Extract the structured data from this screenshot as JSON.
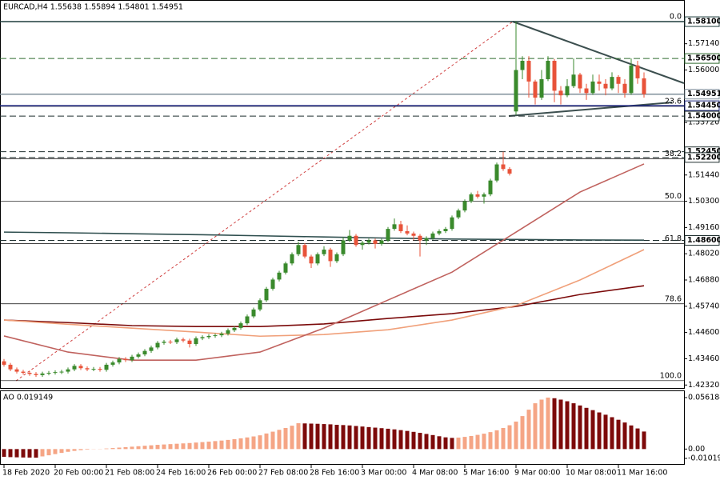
{
  "chart_data": {
    "type": "candlestick",
    "title": "EURCAD,H4 1.55638 1.55894 1.54801 1.54951",
    "up_color": "#3a8a2c",
    "down_color": "#e8533a",
    "candles": [
      [
        1.4335,
        1.4345,
        1.4312,
        1.432
      ],
      [
        1.432,
        1.4328,
        1.4292,
        1.43
      ],
      [
        1.43,
        1.4308,
        1.4282,
        1.429
      ],
      [
        1.429,
        1.4298,
        1.4277,
        1.4285
      ],
      [
        1.4285,
        1.4293,
        1.4272,
        1.428
      ],
      [
        1.428,
        1.4288,
        1.4267,
        1.4275
      ],
      [
        1.4275,
        1.429,
        1.4267,
        1.4282
      ],
      [
        1.4282,
        1.4293,
        1.4274,
        1.4285
      ],
      [
        1.4285,
        1.4296,
        1.4277,
        1.4288
      ],
      [
        1.4288,
        1.4298,
        1.428,
        1.429
      ],
      [
        1.429,
        1.4308,
        1.4282,
        1.43
      ],
      [
        1.43,
        1.4323,
        1.4292,
        1.4315
      ],
      [
        1.4315,
        1.4323,
        1.4297,
        1.4305
      ],
      [
        1.4305,
        1.4313,
        1.4292,
        1.43
      ],
      [
        1.43,
        1.431,
        1.4292,
        1.4302
      ],
      [
        1.4302,
        1.431,
        1.429,
        1.4298
      ],
      [
        1.4298,
        1.4328,
        1.429,
        1.432
      ],
      [
        1.432,
        1.4338,
        1.4312,
        1.433
      ],
      [
        1.433,
        1.4353,
        1.4322,
        1.4345
      ],
      [
        1.4345,
        1.4353,
        1.4332,
        1.434
      ],
      [
        1.434,
        1.4363,
        1.4332,
        1.4355
      ],
      [
        1.4355,
        1.4373,
        1.4347,
        1.4365
      ],
      [
        1.4365,
        1.4388,
        1.4357,
        1.438
      ],
      [
        1.438,
        1.4403,
        1.4372,
        1.4395
      ],
      [
        1.4395,
        1.4423,
        1.4387,
        1.4415
      ],
      [
        1.4415,
        1.4428,
        1.4407,
        1.442
      ],
      [
        1.442,
        1.4428,
        1.441,
        1.4418
      ],
      [
        1.4418,
        1.4438,
        1.441,
        1.443
      ],
      [
        1.443,
        1.4438,
        1.4417,
        1.4425
      ],
      [
        1.4425,
        1.4433,
        1.4395,
        1.441
      ],
      [
        1.441,
        1.4443,
        1.4402,
        1.4435
      ],
      [
        1.4435,
        1.4448,
        1.4427,
        1.444
      ],
      [
        1.444,
        1.4453,
        1.4432,
        1.4445
      ],
      [
        1.4445,
        1.4456,
        1.4437,
        1.4448
      ],
      [
        1.4448,
        1.4463,
        1.444,
        1.4455
      ],
      [
        1.4455,
        1.4478,
        1.4447,
        1.447
      ],
      [
        1.447,
        1.4488,
        1.4462,
        1.448
      ],
      [
        1.448,
        1.4508,
        1.4472,
        1.45
      ],
      [
        1.45,
        1.4538,
        1.4492,
        1.453
      ],
      [
        1.453,
        1.4568,
        1.4522,
        1.456
      ],
      [
        1.456,
        1.4608,
        1.4552,
        1.46
      ],
      [
        1.46,
        1.4658,
        1.4592,
        1.465
      ],
      [
        1.465,
        1.4698,
        1.4642,
        1.469
      ],
      [
        1.469,
        1.4728,
        1.4682,
        1.472
      ],
      [
        1.472,
        1.4768,
        1.4712,
        1.476
      ],
      [
        1.476,
        1.4808,
        1.4752,
        1.48
      ],
      [
        1.48,
        1.4855,
        1.4792,
        1.484
      ],
      [
        1.484,
        1.4848,
        1.4782,
        1.479
      ],
      [
        1.479,
        1.4798,
        1.474,
        1.476
      ],
      [
        1.476,
        1.4808,
        1.4752,
        1.48
      ],
      [
        1.48,
        1.4835,
        1.4792,
        1.482
      ],
      [
        1.482,
        1.4828,
        1.4745,
        1.477
      ],
      [
        1.477,
        1.4808,
        1.4762,
        1.48
      ],
      [
        1.48,
        1.4875,
        1.4792,
        1.486
      ],
      [
        1.486,
        1.4905,
        1.4852,
        1.488
      ],
      [
        1.488,
        1.4888,
        1.4832,
        1.484
      ],
      [
        1.484,
        1.4858,
        1.482,
        1.485
      ],
      [
        1.485,
        1.4868,
        1.4842,
        1.486
      ],
      [
        1.486,
        1.4868,
        1.4825,
        1.4845
      ],
      [
        1.4845,
        1.4868,
        1.4837,
        1.486
      ],
      [
        1.486,
        1.4918,
        1.4852,
        1.491
      ],
      [
        1.491,
        1.4955,
        1.4902,
        1.493
      ],
      [
        1.493,
        1.4945,
        1.4892,
        1.49
      ],
      [
        1.49,
        1.4925,
        1.4882,
        1.489
      ],
      [
        1.489,
        1.4898,
        1.486,
        1.488
      ],
      [
        1.488,
        1.4888,
        1.479,
        1.486
      ],
      [
        1.486,
        1.4878,
        1.484,
        1.487
      ],
      [
        1.487,
        1.4898,
        1.4862,
        1.489
      ],
      [
        1.489,
        1.4908,
        1.4882,
        1.49
      ],
      [
        1.49,
        1.4918,
        1.4892,
        1.491
      ],
      [
        1.491,
        1.4968,
        1.4902,
        1.496
      ],
      [
        1.496,
        1.4998,
        1.4952,
        1.499
      ],
      [
        1.499,
        1.5038,
        1.4982,
        1.503
      ],
      [
        1.503,
        1.5068,
        1.5022,
        1.506
      ],
      [
        1.506,
        1.5075,
        1.5042,
        1.505
      ],
      [
        1.505,
        1.5068,
        1.502,
        1.506
      ],
      [
        1.506,
        1.5128,
        1.5052,
        1.512
      ],
      [
        1.512,
        1.5198,
        1.5112,
        1.519
      ],
      [
        1.519,
        1.5245,
        1.5162,
        1.517
      ],
      [
        1.517,
        1.5178,
        1.5142,
        1.515
      ],
      [
        1.542,
        1.581,
        1.5405,
        1.56
      ],
      [
        1.56,
        1.566,
        1.556,
        1.564
      ],
      [
        1.564,
        1.566,
        1.548,
        1.555
      ],
      [
        1.555,
        1.5558,
        1.545,
        1.548
      ],
      [
        1.548,
        1.56,
        1.547,
        1.556
      ],
      [
        1.556,
        1.566,
        1.5552,
        1.564
      ],
      [
        1.564,
        1.5648,
        1.546,
        1.551
      ],
      [
        1.551,
        1.553,
        1.545,
        1.549
      ],
      [
        1.549,
        1.556,
        1.5482,
        1.553
      ],
      [
        1.553,
        1.565,
        1.5522,
        1.558
      ],
      [
        1.558,
        1.5588,
        1.55,
        1.552
      ],
      [
        1.552,
        1.554,
        1.547,
        1.55
      ],
      [
        1.55,
        1.558,
        1.5492,
        1.555
      ],
      [
        1.555,
        1.558,
        1.551,
        1.554
      ],
      [
        1.554,
        1.556,
        1.549,
        1.552
      ],
      [
        1.552,
        1.559,
        1.5512,
        1.557
      ],
      [
        1.557,
        1.5578,
        1.55,
        1.554
      ],
      [
        1.554,
        1.556,
        1.548,
        1.55
      ],
      [
        1.55,
        1.565,
        1.5492,
        1.562
      ],
      [
        1.562,
        1.564,
        1.554,
        1.55638
      ],
      [
        1.55638,
        1.55894,
        1.54801,
        1.54951
      ]
    ],
    "xticks": [
      {
        "value": 0,
        "label": "18 Feb 2020"
      },
      {
        "value": 8,
        "label": "20 Feb 00:00"
      },
      {
        "value": 16,
        "label": "21 Feb 08:00"
      },
      {
        "value": 24,
        "label": "24 Feb 16:00"
      },
      {
        "value": 32,
        "label": "26 Feb 00:00"
      },
      {
        "value": 40,
        "label": "27 Feb 08:00"
      },
      {
        "value": 48,
        "label": "28 Feb 16:00"
      },
      {
        "value": 56,
        "label": "3 Mar 00:00"
      },
      {
        "value": 64,
        "label": "4 Mar 08:00"
      },
      {
        "value": 72,
        "label": "5 Mar 16:00"
      },
      {
        "value": 80,
        "label": "9 Mar 00:00"
      },
      {
        "value": 88,
        "label": "10 Mar 08:00"
      },
      {
        "value": 96,
        "label": "11 Mar 16:00"
      }
    ],
    "ylim": [
      1.4219,
      1.5904
    ],
    "yticks": [
      {
        "value": 1.5714,
        "label": "1.57140"
      },
      {
        "value": 1.56,
        "label": "1.56000"
      },
      {
        "value": 1.5372,
        "label": "1.53720"
      },
      {
        "value": 1.5144,
        "label": "1.51440"
      },
      {
        "value": 1.503,
        "label": "1.50300"
      },
      {
        "value": 1.4916,
        "label": "1.49160"
      },
      {
        "value": 1.4802,
        "label": "1.48020"
      },
      {
        "value": 1.4688,
        "label": "1.46880"
      },
      {
        "value": 1.4574,
        "label": "1.45740"
      },
      {
        "value": 1.446,
        "label": "1.44600"
      },
      {
        "value": 1.4346,
        "label": "1.43460"
      },
      {
        "value": 1.4232,
        "label": "1.42320"
      }
    ],
    "levels": [
      {
        "value": 1.581,
        "label": "1.58100",
        "color": "#1f3d3d",
        "dashed": false
      },
      {
        "value": 1.565,
        "label": "1.56500",
        "color": "#2e6b2e",
        "dashed": true
      },
      {
        "value": 1.54951,
        "label": "1.54951",
        "color": "#7f8f9a",
        "dashed": false
      },
      {
        "value": 1.5445,
        "label": "1.54450",
        "color": "#1a237e",
        "dashed": false
      },
      {
        "value": 1.54,
        "label": "1.54000",
        "color": "#1f2f2f",
        "dashed": true
      },
      {
        "value": 1.5245,
        "label": "1.52450",
        "color": "#1f2f2f",
        "dashed": true
      },
      {
        "value": 1.522,
        "label": "1.52200",
        "color": "#1f2f2f",
        "dashed": true
      },
      {
        "value": 1.486,
        "label": "1.48600",
        "color": "#1f2f2f",
        "dashed": true
      }
    ],
    "fib": {
      "high": 1.581,
      "low": 1.4251,
      "color": "#000000",
      "levels": [
        {
          "value": 0,
          "label": "0.0"
        },
        23.6,
        38.2,
        {
          "value": 50,
          "label": "50.0"
        },
        61.8,
        78.6,
        {
          "value": 100,
          "label": "100.0"
        }
      ]
    },
    "moving_averages": [
      {
        "color": "#2f4f4f",
        "values": [
          1.4896,
          1.4893,
          1.4889,
          1.4885,
          1.488,
          1.4875,
          1.487,
          1.4866,
          1.4864,
          1.4862,
          1.4861
        ]
      },
      {
        "color": "#7b0a0a",
        "values": [
          1.4514,
          1.4503,
          1.449,
          1.4486,
          1.4486,
          1.4497,
          1.4521,
          1.4542,
          1.4573,
          1.4625,
          1.4663
        ]
      },
      {
        "color": "#f0a07a",
        "values": [
          1.4514,
          1.4496,
          1.4479,
          1.4462,
          1.4444,
          1.4451,
          1.4472,
          1.4514,
          1.4577,
          1.4688,
          1.482
        ]
      },
      {
        "color": "#c0625e",
        "values": [
          1.4445,
          1.4375,
          1.434,
          1.434,
          1.4375,
          1.4479,
          1.4601,
          1.4722,
          1.4896,
          1.507,
          1.5192
        ]
      }
    ],
    "ao": {
      "type": "bar",
      "label": "AO 0.019149",
      "up_color": "#f5a585",
      "down_color": "#7d0a0a",
      "ylim": [
        -0.010193,
        0.056184
      ],
      "yticks": [
        0.056184,
        {
          "value": 0,
          "label": "0.00"
        },
        -0.010193
      ],
      "values": [
        -0.0085,
        -0.0088,
        -0.009,
        -0.0092,
        -0.0093,
        -0.0094,
        -0.008,
        -0.0068,
        -0.0055,
        -0.0042,
        -0.003,
        -0.002,
        -0.0012,
        -0.0006,
        -0.0002,
        0.0002,
        0.0006,
        0.0011,
        0.0016,
        0.0021,
        0.0026,
        0.0031,
        0.0036,
        0.0041,
        0.0046,
        0.005,
        0.0054,
        0.0058,
        0.0062,
        0.0066,
        0.0071,
        0.0076,
        0.0081,
        0.0087,
        0.0093,
        0.01,
        0.0108,
        0.0117,
        0.0127,
        0.0138,
        0.015,
        0.017,
        0.019,
        0.021,
        0.023,
        0.0255,
        0.0282,
        0.028,
        0.0278,
        0.0276,
        0.0273,
        0.027,
        0.0265,
        0.0262,
        0.0258,
        0.0252,
        0.0246,
        0.024,
        0.0234,
        0.0228,
        0.0222,
        0.0215,
        0.0207,
        0.0198,
        0.0188,
        0.0177,
        0.0165,
        0.0153,
        0.014,
        0.0128,
        0.0122,
        0.0125,
        0.0133,
        0.0143,
        0.0155,
        0.0168,
        0.0185,
        0.0205,
        0.023,
        0.026,
        0.03,
        0.036,
        0.043,
        0.05,
        0.054,
        0.0562,
        0.0555,
        0.054,
        0.0522,
        0.05,
        0.0476,
        0.045,
        0.0425,
        0.04,
        0.0375,
        0.0348,
        0.032,
        0.029,
        0.0258,
        0.0225,
        0.019149
      ]
    }
  }
}
